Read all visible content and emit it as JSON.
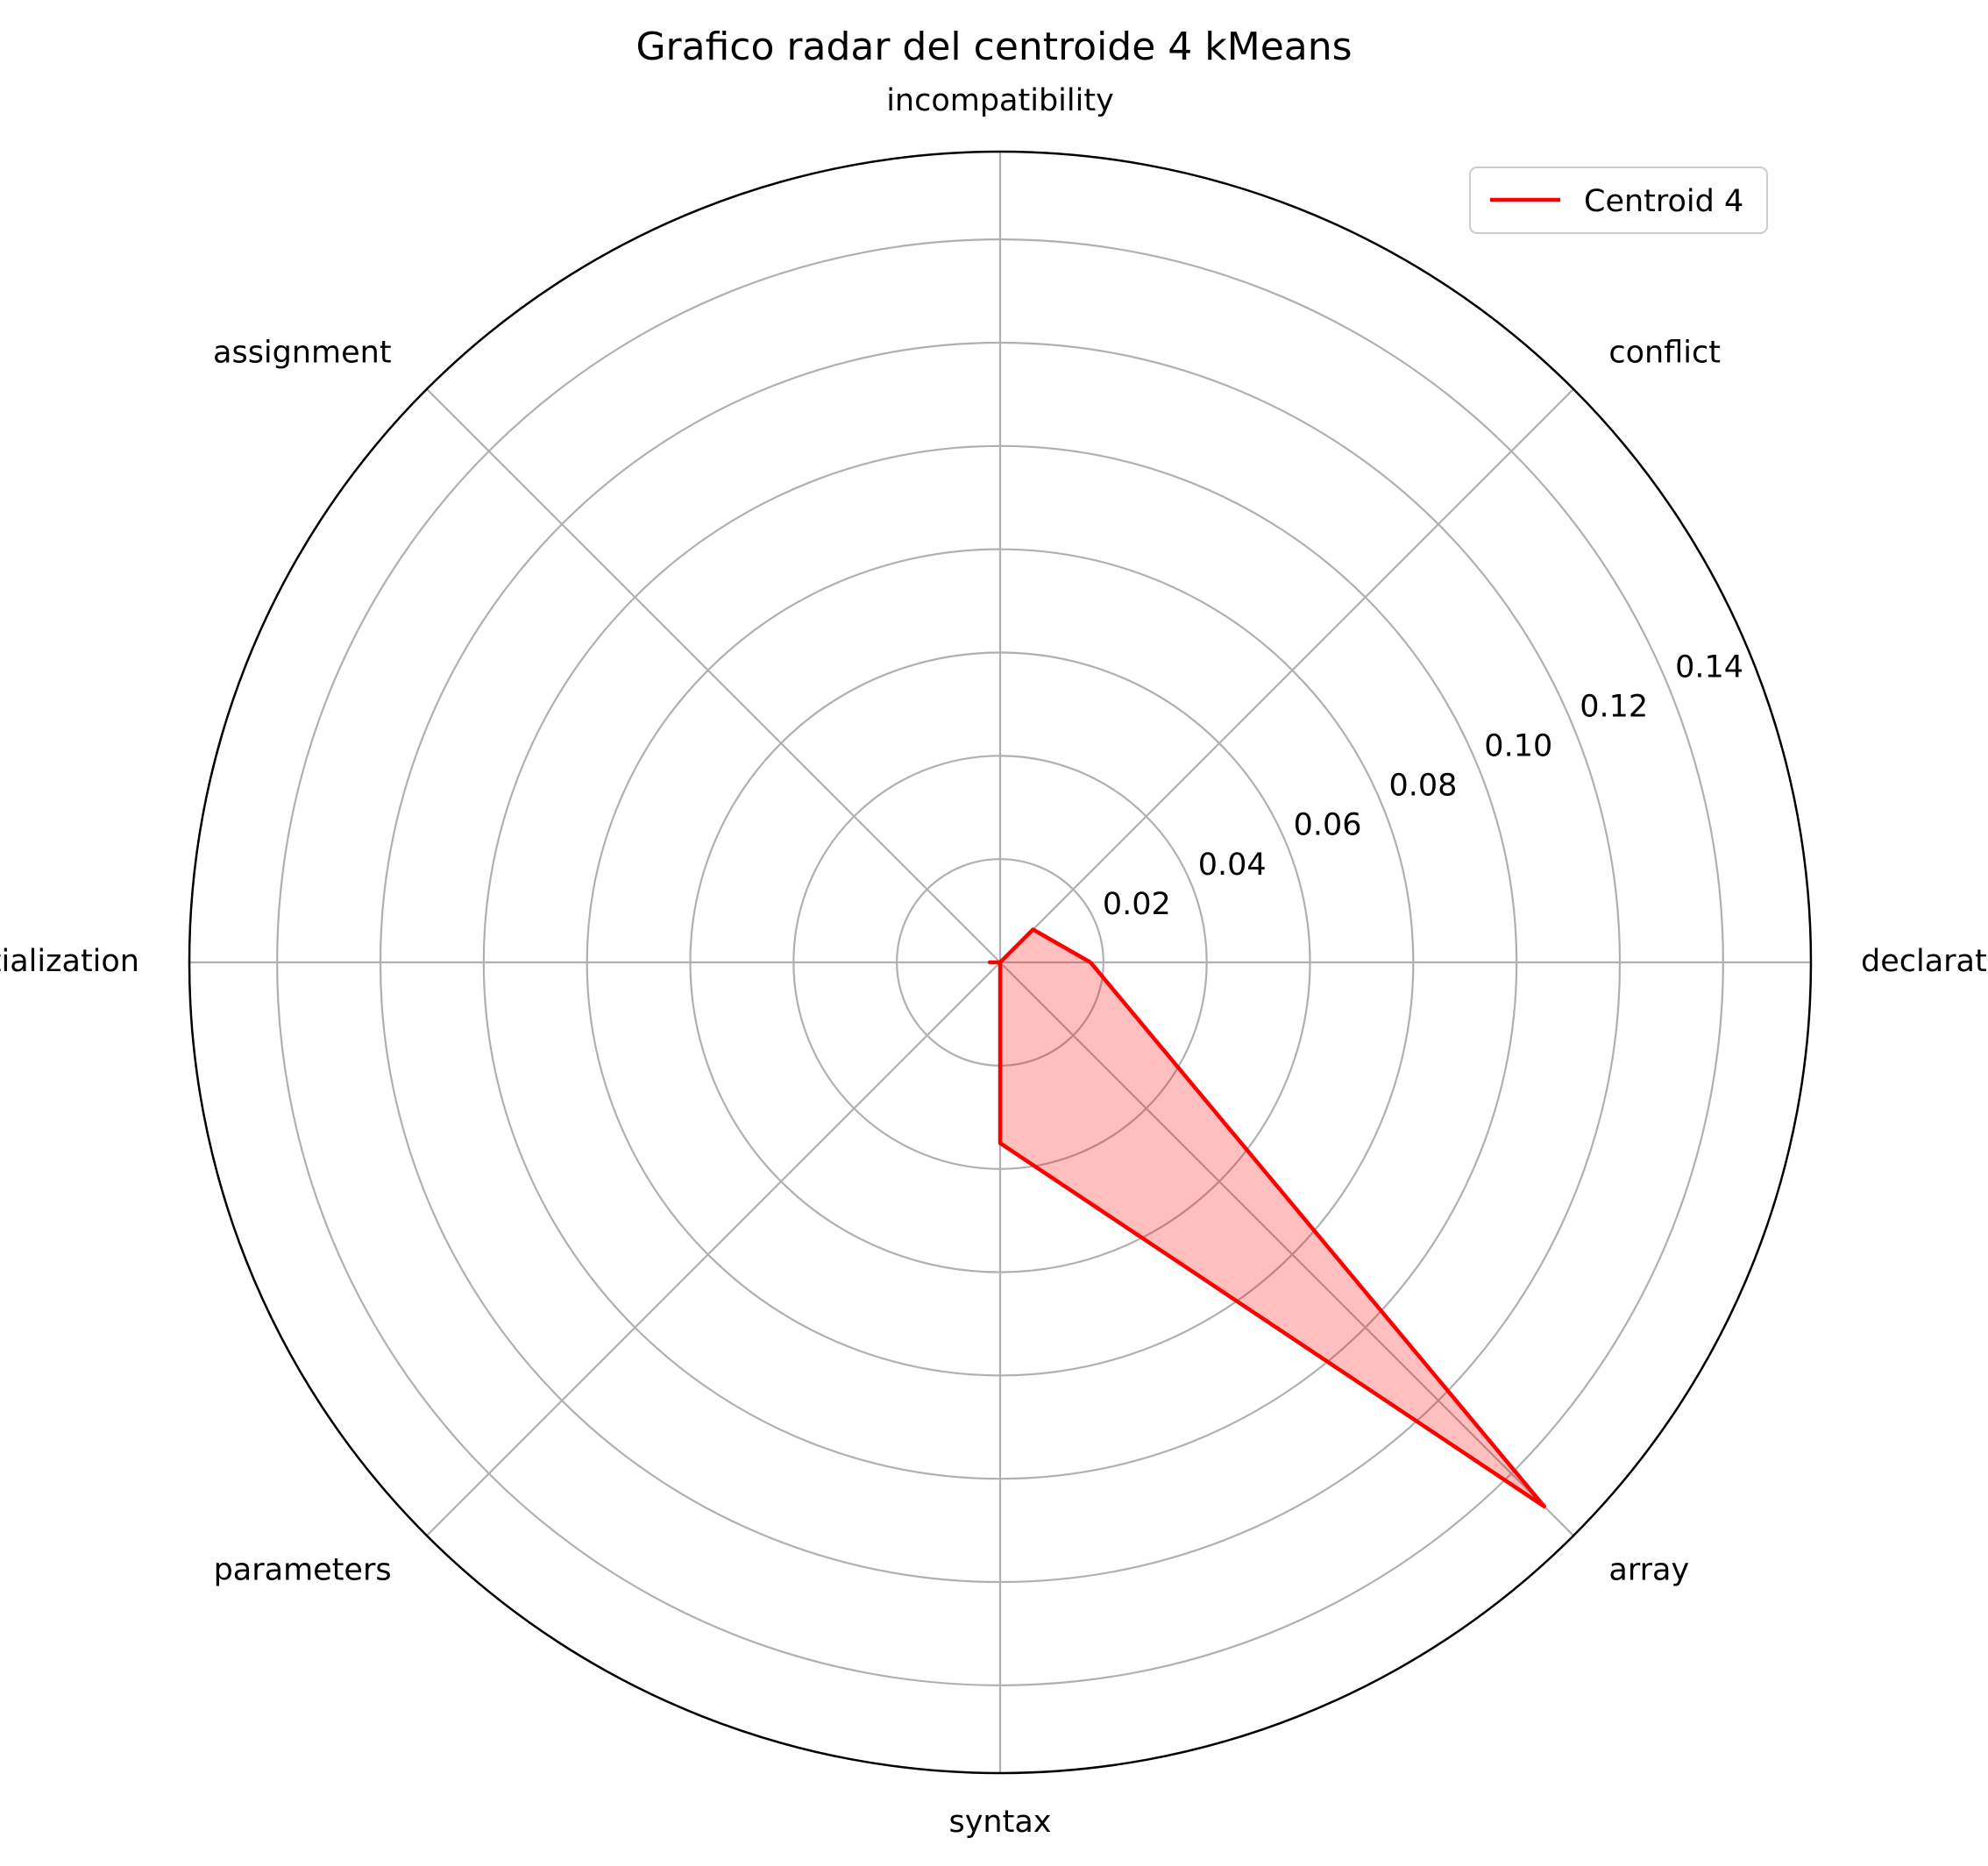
{
  "chart_data": {
    "type": "radar",
    "title": "Grafico radar del centroide 4 kMeans",
    "categories": [
      "declaration",
      "conflict",
      "incompatibility",
      "assignment",
      "initialization",
      "parameters",
      "syntax",
      "array"
    ],
    "series": [
      {
        "name": "Centroid 4",
        "values": [
          0.0175,
          0.009,
          0.0,
          0.0,
          0.002,
          0.0,
          0.035,
          0.149
        ],
        "color": "#ff0000",
        "fill": "#ff0000",
        "fill_opacity": 0.25
      }
    ],
    "rlim": [
      0,
      0.157
    ],
    "rticks": [
      0.02,
      0.04,
      0.06,
      0.08,
      0.1,
      0.12,
      0.14
    ],
    "rtick_labels": [
      "0.02",
      "0.04",
      "0.06",
      "0.08",
      "0.10",
      "0.12",
      "0.14"
    ],
    "grid": true,
    "legend_position": "top-right"
  }
}
